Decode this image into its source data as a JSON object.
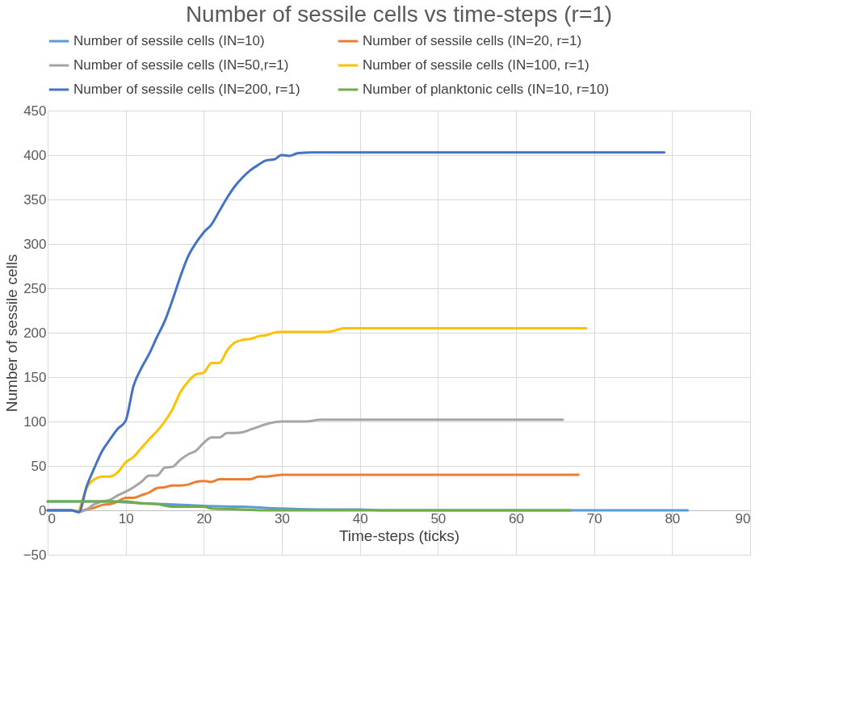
{
  "chart_data": {
    "type": "line",
    "title": "Number of sessile cells vs time-steps (r=1)",
    "xlabel": "Time-steps (ticks)",
    "ylabel": "Number of sessile cells",
    "xlim": [
      0,
      90
    ],
    "xticks": [
      0,
      10,
      20,
      30,
      40,
      50,
      60,
      70,
      80,
      90
    ],
    "ylim": [
      -50,
      450
    ],
    "yticks": [
      -50,
      0,
      50,
      100,
      150,
      200,
      250,
      300,
      350,
      400,
      450
    ],
    "grid": true,
    "legend": "top",
    "marker": "none",
    "line_style": "solid",
    "series": [
      {
        "name": "Number of sessile cells (IN=10)",
        "color": "#5b9bd5",
        "x": [
          0,
          5,
          8,
          10,
          12,
          15,
          18,
          20,
          25,
          30,
          35,
          40,
          43,
          50,
          82
        ],
        "values": [
          10,
          10,
          10,
          9,
          8,
          7,
          6,
          5,
          4,
          2,
          1,
          1,
          0,
          0,
          0
        ]
      },
      {
        "name": "Number of sessile cells (IN=20, r=1)",
        "color": "#ed7d31",
        "x": [
          0,
          3,
          4,
          5,
          6,
          7,
          8,
          9,
          10,
          11,
          12,
          13,
          14,
          15,
          16,
          17,
          18,
          19,
          20,
          21,
          22,
          26,
          27,
          28,
          29,
          30,
          68
        ],
        "values": [
          0,
          0,
          -1,
          1,
          3,
          6,
          7,
          10,
          14,
          14,
          17,
          20,
          25,
          26,
          28,
          28,
          29,
          32,
          33,
          32,
          35,
          35,
          38,
          38,
          39,
          40,
          40
        ]
      },
      {
        "name": "Number of sessile cells (IN=50,r=1)",
        "color": "#a5a5a5",
        "x": [
          0,
          3,
          4,
          5,
          6,
          7,
          8,
          9,
          10,
          11,
          12,
          13,
          14,
          15,
          16,
          17,
          18,
          19,
          20,
          21,
          22,
          23,
          24,
          25,
          26,
          27,
          28,
          30,
          33,
          35,
          66
        ],
        "values": [
          0,
          0,
          -2,
          1,
          7,
          10,
          12,
          17,
          21,
          26,
          32,
          39,
          39,
          48,
          49,
          57,
          63,
          67,
          76,
          82,
          82,
          87,
          87,
          88,
          91,
          94,
          97,
          100,
          100,
          102,
          102
        ]
      },
      {
        "name": "Number of sessile cells (IN=100, r=1)",
        "color": "#ffc000",
        "x": [
          4,
          5,
          6,
          7,
          8,
          9,
          10,
          11,
          12,
          13,
          14,
          15,
          16,
          17,
          18,
          19,
          20,
          21,
          22,
          23,
          24,
          25,
          26,
          27,
          28,
          29,
          30,
          36,
          38,
          69
        ],
        "values": [
          -2,
          25,
          35,
          38,
          38,
          43,
          54,
          60,
          70,
          80,
          89,
          100,
          114,
          133,
          145,
          153,
          155,
          166,
          166,
          180,
          189,
          192,
          193,
          196,
          197,
          200,
          201,
          201,
          205,
          205
        ]
      },
      {
        "name": "Number of sessile cells (IN=200, r=1)",
        "color": "#4472c4",
        "x": [
          0,
          3,
          4,
          5,
          6,
          7,
          8,
          9,
          10,
          11,
          12,
          13,
          14,
          15,
          16,
          17,
          18,
          19,
          20,
          21,
          22,
          23,
          24,
          25,
          26,
          27,
          28,
          29,
          30,
          31,
          32,
          34,
          79
        ],
        "values": [
          0,
          0,
          -2,
          27,
          48,
          67,
          80,
          92,
          101,
          140,
          160,
          176,
          195,
          213,
          237,
          263,
          286,
          301,
          313,
          322,
          337,
          352,
          365,
          375,
          383,
          389,
          394,
          395,
          400,
          399,
          402,
          403,
          403
        ]
      },
      {
        "name": "Number of planktonic cells (IN=10, r=10)",
        "color": "#70ad47",
        "x": [
          0,
          10,
          12,
          14,
          16,
          20,
          21,
          25,
          28,
          67
        ],
        "values": [
          10,
          10,
          8,
          7,
          4,
          4,
          2,
          1,
          0,
          0
        ]
      }
    ]
  }
}
